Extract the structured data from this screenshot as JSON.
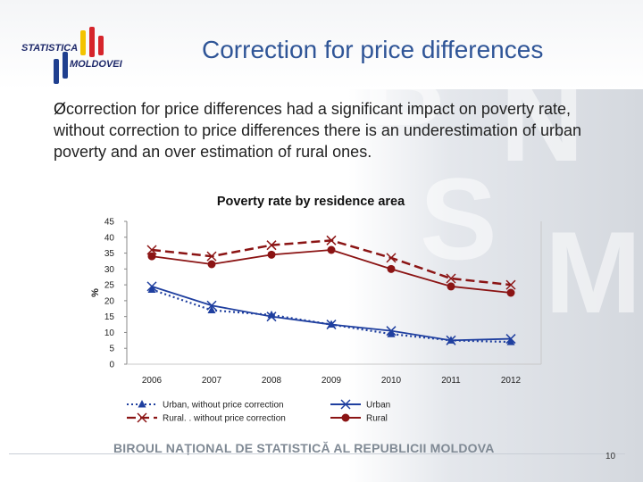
{
  "logo": {
    "line1": "STATISTICA",
    "line2": "MOLDOVEI",
    "colors": [
      "#1f3f8f",
      "#d6252b",
      "#f3c300"
    ]
  },
  "slide": {
    "title": "Correction for price differences",
    "bullet": "correction for price differences had a significant impact on poverty rate, without correction to price differences there is an underestimation of urban poverty and an over estimation of rural ones.",
    "bullet_marker": "Ø",
    "footer": "BIROUL NAȚIONAL DE STATISTICĂ AL REPUBLICII MOLDOVA",
    "page_number": "10"
  },
  "chart_data": {
    "type": "line",
    "title": "Poverty rate by residence area",
    "xlabel": "",
    "ylabel": "%",
    "ylim": [
      0,
      45
    ],
    "yticks": [
      0,
      5,
      10,
      15,
      20,
      25,
      30,
      35,
      40,
      45
    ],
    "categories": [
      "2006",
      "2007",
      "2008",
      "2009",
      "2010",
      "2011",
      "2012"
    ],
    "series": [
      {
        "name": "Urban, without price correction",
        "values": [
          23.5,
          17.0,
          15.5,
          12.5,
          9.5,
          7.5,
          7.0
        ],
        "color": "#1f3f9f",
        "style": "dotted",
        "marker": "triangle"
      },
      {
        "name": "Rural. . without price correction",
        "values": [
          36.0,
          34.0,
          37.5,
          39.0,
          33.5,
          27.0,
          25.0
        ],
        "color": "#8b1414",
        "style": "dashed",
        "marker": "x"
      },
      {
        "name": "Urban",
        "values": [
          24.5,
          18.5,
          15.0,
          12.5,
          10.5,
          7.5,
          8.0
        ],
        "color": "#1f3f9f",
        "style": "solid",
        "marker": "x"
      },
      {
        "name": "Rural",
        "values": [
          34.0,
          31.5,
          34.5,
          36.0,
          30.0,
          24.5,
          22.5
        ],
        "color": "#8b1414",
        "style": "solid",
        "marker": "circle"
      }
    ],
    "legend_position": "bottom"
  }
}
